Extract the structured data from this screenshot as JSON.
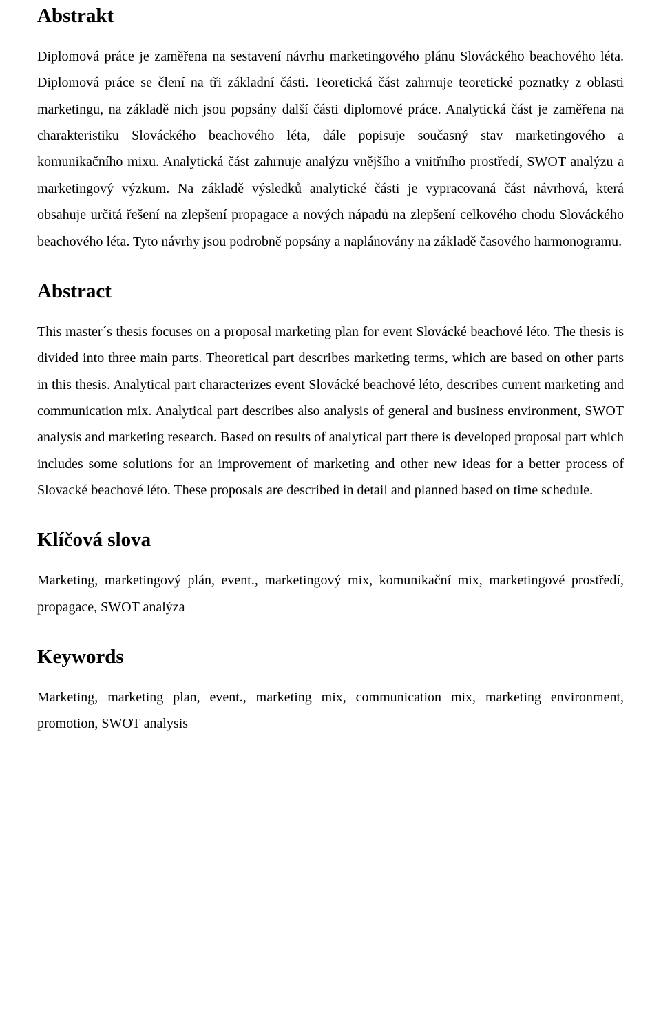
{
  "typography": {
    "font_family": "Times New Roman",
    "heading_fontsize_pt": 22,
    "heading_weight": "bold",
    "body_fontsize_pt": 15,
    "line_height": 1.92,
    "text_align": "justify",
    "text_color": "#000000",
    "background_color": "#ffffff"
  },
  "sections": {
    "abstrakt": {
      "heading": "Abstrakt",
      "body": "Diplomová práce je zaměřena na sestavení návrhu marketingového plánu Slováckého beachového léta. Diplomová práce se člení na tři základní části. Teoretická část zahrnuje teoretické poznatky z oblasti marketingu, na základě nich jsou popsány další části diplomové práce. Analytická část je zaměřena na charakteristiku Slováckého beachového léta, dále popisuje současný stav marketingového a komunikačního mixu. Analytická část zahrnuje analýzu vnějšího a vnitřního prostředí, SWOT analýzu a marketingový výzkum. Na základě výsledků analytické části je vypracovaná část návrhová, která obsahuje určitá řešení na zlepšení propagace a nových nápadů na zlepšení celkového chodu Slováckého beachového léta. Tyto návrhy jsou podrobně popsány a naplánovány na základě časového harmonogramu."
    },
    "abstract": {
      "heading": "Abstract",
      "body": "This master´s thesis focuses on a proposal marketing plan for event Slovácké beachové léto. The thesis is divided into three main parts. Theoretical part describes marketing terms, which are based on other parts in this thesis. Analytical part characterizes event Slovácké beachové léto, describes current marketing and communication mix. Analytical part describes also analysis of  general and business environment, SWOT analysis and marketing research. Based on results of analytical part there is developed proposal part which includes some solutions for an improvement of marketing and other new ideas for a better process of Slovacké beachové léto. These proposals are described in detail and planned based on time schedule."
    },
    "klicova_slova": {
      "heading": "Klíčová slova",
      "body": "Marketing, marketingový plán, event., marketingový mix, komunikační mix, marketingové prostředí, propagace, SWOT analýza"
    },
    "keywords": {
      "heading": "Keywords",
      "body": "Marketing, marketing plan, event., marketing mix, communication mix, marketing environment, promotion, SWOT analysis"
    }
  }
}
